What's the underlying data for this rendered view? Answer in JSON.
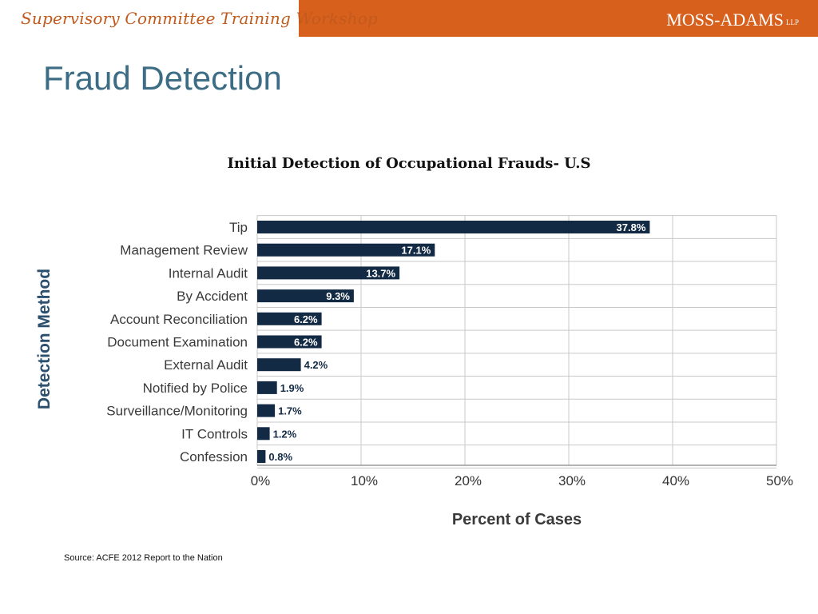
{
  "header": {
    "workshop_title": "Supervisory Committee Training Workshop",
    "brand": "MOSS-ADAMS",
    "brand_suffix": "LLP",
    "accent_color": "#d8601d"
  },
  "page_title": "Fraud Detection",
  "source_note": "Source: ACFE 2012 Report to the Nation",
  "chart_data": {
    "type": "bar",
    "orientation": "horizontal",
    "title": "Initial Detection of Occupational Frauds- U.S",
    "xlabel": "Percent of Cases",
    "ylabel": "Detection Method",
    "categories": [
      "Tip",
      "Management Review",
      "Internal Audit",
      "By Accident",
      "Account Reconciliation",
      "Document Examination",
      "External Audit",
      "Notified by Police",
      "Surveillance/Monitoring",
      "IT Controls",
      "Confession"
    ],
    "values": [
      37.8,
      17.1,
      13.7,
      9.3,
      6.2,
      6.2,
      4.2,
      1.9,
      1.7,
      1.2,
      0.8
    ],
    "data_labels": [
      "37.8%",
      "17.1%",
      "13.7%",
      "9.3%",
      "6.2%",
      "6.2%",
      "4.2%",
      "1.9%",
      "1.7%",
      "1.2%",
      "0.8%"
    ],
    "xlim": [
      0,
      50
    ],
    "xticks": [
      0,
      10,
      20,
      30,
      40,
      50
    ],
    "xtick_labels": [
      "0%",
      "10%",
      "20%",
      "30%",
      "40%",
      "50%"
    ],
    "grid": true,
    "bar_color": "#132a45",
    "grid_color": "#c9c9c9"
  }
}
